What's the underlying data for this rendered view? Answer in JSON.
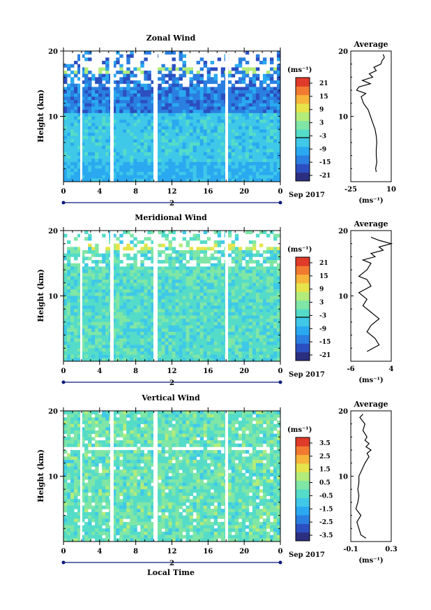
{
  "chart_data": [
    {
      "type": "heatmap",
      "panel": "zonal",
      "title": "Zonal Wind",
      "ylabel": "Height (km)",
      "xlabel": "",
      "ylim": [
        0,
        20
      ],
      "yticks": [
        20,
        10
      ],
      "xlim": [
        0,
        24
      ],
      "xticks": [
        "0",
        "4",
        "8",
        "12",
        "16",
        "20",
        "0"
      ],
      "date_marker": "2",
      "date_suffix": "Sep 2017",
      "colorbar": {
        "unit": "(ms⁻¹)",
        "ticks": [
          "21",
          "15",
          "9",
          "3",
          "-3",
          "-9",
          "-15",
          "-21"
        ],
        "range": [
          -24,
          24
        ]
      },
      "average": {
        "title": "Average",
        "xlabel": "(ms⁻¹)",
        "xticks": [
          "-25",
          "10"
        ],
        "xlim": [
          -25,
          10
        ],
        "yticks": [
          "20",
          "10"
        ],
        "profile_km": [
          1.5,
          2,
          3,
          4,
          5,
          6,
          7,
          8,
          9,
          10,
          11,
          12,
          13,
          13.5,
          14,
          14.5,
          15,
          15.5,
          16,
          16.5,
          17,
          17.5,
          18,
          18.5,
          19,
          19.5
        ],
        "profile_val": [
          -3,
          -3.5,
          -2.5,
          -3,
          -3,
          -2.5,
          -3,
          -4,
          -6,
          -8,
          -10,
          -14,
          -16,
          -12,
          -20,
          -18,
          -8,
          -15,
          -6,
          -9,
          -3,
          -5,
          1,
          2,
          4,
          3
        ]
      }
    },
    {
      "type": "heatmap",
      "panel": "meridional",
      "title": "Meridional Wind",
      "ylabel": "Height (km)",
      "xlabel": "",
      "ylim": [
        0,
        20
      ],
      "yticks": [
        20,
        10
      ],
      "xlim": [
        0,
        24
      ],
      "xticks": [
        "0",
        "4",
        "8",
        "12",
        "16",
        "20",
        "0"
      ],
      "date_marker": "2",
      "date_suffix": "Sep 2017",
      "colorbar": {
        "unit": "(ms⁻¹)",
        "ticks": [
          "21",
          "15",
          "9",
          "3",
          "-3",
          "-9",
          "-15",
          "-21"
        ],
        "range": [
          -24,
          24
        ]
      },
      "average": {
        "title": "Average",
        "xlabel": "(ms⁻¹)",
        "xticks": [
          "-6",
          "4"
        ],
        "xlim": [
          -6,
          4
        ],
        "yticks": [
          "20",
          "10"
        ],
        "profile_km": [
          1.5,
          2.5,
          3.5,
          4.5,
          5.5,
          6.5,
          7.5,
          8.5,
          9.5,
          10.5,
          11.5,
          12.5,
          13,
          14,
          15,
          15.5,
          16,
          16.5,
          17,
          17.5,
          18,
          18.5,
          19
        ],
        "profile_val": [
          -2,
          1,
          0,
          -2,
          -1,
          1,
          -1,
          -3,
          -2,
          -4,
          -1,
          -2,
          -4,
          -2,
          -1,
          -3,
          0,
          -1,
          2,
          1,
          4,
          1,
          -1
        ]
      }
    },
    {
      "type": "heatmap",
      "panel": "vertical",
      "title": "Vertical Wind",
      "ylabel": "Height (km)",
      "xlabel": "Local Time",
      "ylim": [
        0,
        20
      ],
      "yticks": [
        20,
        10
      ],
      "xlim": [
        0,
        24
      ],
      "xticks": [
        "0",
        "4",
        "8",
        "12",
        "16",
        "20",
        "0"
      ],
      "date_marker": "2",
      "date_suffix": "Sep 2017",
      "colorbar": {
        "unit": "(ms⁻¹)",
        "ticks": [
          "3.5",
          "2.5",
          "1.5",
          "0.5",
          "-0.5",
          "-1.5",
          "-2.5",
          "-3.5"
        ],
        "range": [
          -4,
          4
        ]
      },
      "average": {
        "title": "Average",
        "xlabel": "(ms⁻¹)",
        "xticks": [
          "-0.1",
          "0.3"
        ],
        "xlim": [
          -0.1,
          0.3
        ],
        "yticks": [
          "20",
          "10"
        ],
        "profile_km": [
          0.5,
          1,
          2,
          3,
          4,
          5,
          6,
          7,
          8,
          9,
          10,
          11,
          12,
          13,
          13.5,
          14,
          14.5,
          15,
          15.5,
          16,
          17,
          18,
          19,
          19.5
        ],
        "profile_val": [
          0.05,
          0.0,
          -0.02,
          -0.04,
          0.0,
          -0.05,
          -0.03,
          -0.02,
          -0.03,
          -0.02,
          -0.02,
          0.01,
          0.04,
          0.08,
          0.06,
          0.1,
          0.05,
          0.08,
          0.04,
          0.06,
          0.02,
          0.04,
          -0.01,
          0.02
        ]
      }
    }
  ],
  "footer": {
    "xlabel": "Local Time"
  },
  "colors": {
    "scale": [
      "#2c2f80",
      "#2c4fc0",
      "#2a7fe0",
      "#2aa9f0",
      "#3fc8e8",
      "#55dcc8",
      "#7fe6a6",
      "#b2ec7a",
      "#e6e44a",
      "#f6b43a",
      "#f27a30",
      "#e03a2a"
    ],
    "axis_line": "#0a1a7a",
    "gap": "#ffffff"
  }
}
